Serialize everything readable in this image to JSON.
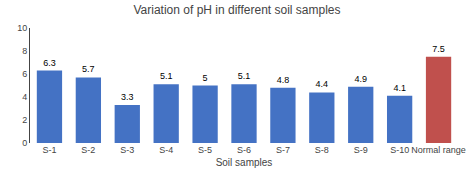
{
  "chart_data": {
    "type": "bar",
    "title": "Variation of pH in different soil samples",
    "xlabel": "Soil samples",
    "categories": [
      "S-1",
      "S-2",
      "S-3",
      "S-4",
      "S-5",
      "S-6",
      "S-7",
      "S-8",
      "S-9",
      "S-10",
      "Normal range"
    ],
    "values": [
      6.3,
      5.7,
      3.3,
      5.1,
      5.0,
      5.1,
      4.8,
      4.4,
      4.9,
      4.1,
      7.5
    ],
    "colors": [
      "#4472C4",
      "#4472C4",
      "#4472C4",
      "#4472C4",
      "#4472C4",
      "#4472C4",
      "#4472C4",
      "#4472C4",
      "#4472C4",
      "#4472C4",
      "#C0504D"
    ],
    "ylim": [
      0,
      10
    ],
    "yticks": [
      0,
      2,
      4,
      6,
      8,
      10
    ],
    "data_labels": true,
    "grid": false
  }
}
